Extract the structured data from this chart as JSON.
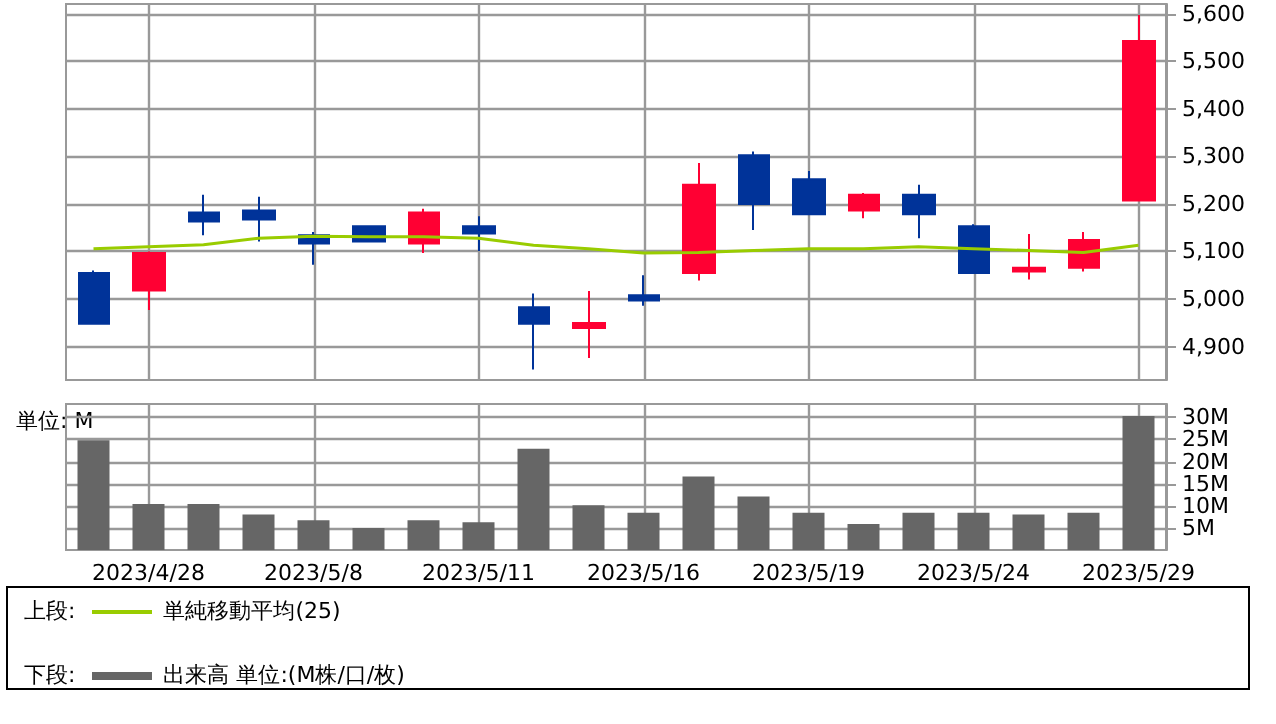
{
  "chart_data": [
    {
      "type": "candlestick",
      "categories": [
        null,
        "2023/4/28",
        null,
        null,
        "2023/5/8",
        null,
        null,
        "2023/5/11",
        null,
        null,
        "2023/5/16",
        null,
        null,
        "2023/5/19",
        null,
        null,
        "2023/5/24",
        null,
        null,
        "2023/5/29"
      ],
      "ohlc": [
        [
          5055,
          5060,
          4948,
          4948
        ],
        [
          5018,
          5100,
          4977,
          5097
        ],
        [
          5182,
          5219,
          5134,
          5163
        ],
        [
          5186,
          5215,
          5121,
          5167
        ],
        [
          5134,
          5141,
          5072,
          5117
        ],
        [
          5153,
          5153,
          5121,
          5121
        ],
        [
          5117,
          5190,
          5097,
          5182
        ],
        [
          5153,
          5174,
          5101,
          5138
        ],
        [
          4983,
          5012,
          4852,
          4948
        ],
        [
          4939,
          5017,
          4876,
          4950
        ],
        [
          5008,
          5050,
          4986,
          4997
        ],
        [
          5055,
          5286,
          5039,
          5240
        ],
        [
          5302,
          5310,
          5145,
          5200
        ],
        [
          5252,
          5269,
          5178,
          5178
        ],
        [
          5186,
          5223,
          5170,
          5219
        ],
        [
          5219,
          5240,
          5128,
          5178
        ],
        [
          5153,
          5157,
          5055,
          5055
        ],
        [
          5058,
          5137,
          5041,
          5066
        ],
        [
          5066,
          5141,
          5058,
          5124
        ],
        [
          5207,
          5597,
          5207,
          5542
        ]
      ],
      "colors": [
        "#003399",
        "#ff0033",
        "#003399",
        "#003399",
        "#003399",
        "#003399",
        "#ff0033",
        "#003399",
        "#003399",
        "#ff0033",
        "#003399",
        "#ff0033",
        "#003399",
        "#003399",
        "#ff0033",
        "#003399",
        "#003399",
        "#ff0033",
        "#ff0033",
        "#ff0033"
      ],
      "series": [
        {
          "name": "単純移動平均(25)",
          "type": "line",
          "color": "#99cc00",
          "values": [
            5106,
            5110,
            5114,
            5128,
            5132,
            5131,
            5131,
            5128,
            5113,
            5106,
            5097,
            5098,
            5102,
            5106,
            5106,
            5110,
            5106,
            5102,
            5098,
            5113
          ]
        }
      ],
      "ylim": [
        4830,
        5620
      ],
      "yticks": [
        {
          "value": 4900,
          "label": "4,900"
        },
        {
          "value": 5000,
          "label": "5,000"
        },
        {
          "value": 5100,
          "label": "5,100"
        },
        {
          "value": 5200,
          "label": "5,200"
        },
        {
          "value": 5300,
          "label": "5,300"
        },
        {
          "value": 5400,
          "label": "5,400"
        },
        {
          "value": 5500,
          "label": "5,500"
        },
        {
          "value": 5600,
          "label": "5,600"
        }
      ],
      "grid": true,
      "tick_labels": "y",
      "marker": "none",
      "legend": "bottom",
      "legend_title": "上段:"
    },
    {
      "type": "bar",
      "categories": [
        null,
        "2023/4/28",
        null,
        null,
        "2023/5/8",
        null,
        null,
        "2023/5/11",
        null,
        null,
        "2023/5/16",
        null,
        null,
        "2023/5/19",
        null,
        null,
        "2023/5/24",
        null,
        null,
        "2023/5/29"
      ],
      "series": [
        {
          "name": "出来高 単位:(M株/口/枚)",
          "color": "#666666",
          "values": [
            24.8,
            10.4,
            10.4,
            8.0,
            6.7,
            5.0,
            6.7,
            6.3,
            22.9,
            10.1,
            8.4,
            16.6,
            12.1,
            8.4,
            5.9,
            8.4,
            8.4,
            8.0,
            8.4,
            30.3
          ]
        }
      ],
      "ylim": [
        0,
        33
      ],
      "yticks": [
        {
          "value": 5,
          "label": "5M"
        },
        {
          "value": 10,
          "label": "10M"
        },
        {
          "value": 15,
          "label": "15M"
        },
        {
          "value": 20,
          "label": "20M"
        },
        {
          "value": 25,
          "label": "25M"
        },
        {
          "value": 30,
          "label": "30M"
        }
      ],
      "grid": true,
      "legend": "bottom",
      "legend_title": "下段:",
      "annotations": [
        "単位: M"
      ]
    }
  ]
}
